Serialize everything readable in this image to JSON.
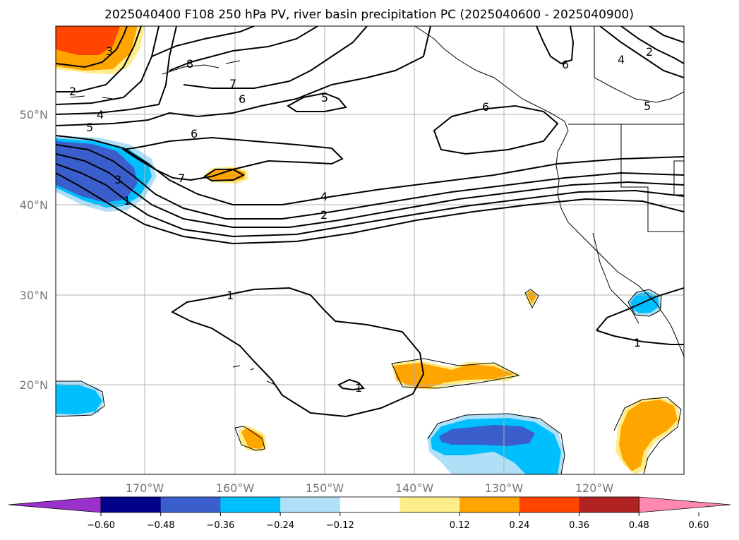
{
  "title": "2025040400 F108 250 hPa PV, river basin precipitation PC (2025040600 - 2025040900)",
  "lat_labels": [
    "50°N",
    "40°N",
    "30°N",
    "20°N"
  ],
  "lon_labels": [
    "170°W",
    "160°W",
    "150°W",
    "140°W",
    "130°W",
    "120°W"
  ],
  "colorbar": {
    "ticks": [
      "−0.60",
      "−0.48",
      "−0.36",
      "−0.24",
      "−0.12",
      "0.12",
      "0.24",
      "0.36",
      "0.48",
      "0.60"
    ],
    "colors": [
      "#9932cc",
      "#00008b",
      "#3a5fcd",
      "#00bfff",
      "#b0e0f8",
      "#ffffff",
      "#ffec8b",
      "#ffa500",
      "#ff4500",
      "#b22222",
      "#ff88b0"
    ]
  },
  "contour_labels": {
    "l3": "3",
    "l2a": "2",
    "l4a": "4",
    "l5a": "5",
    "l8": "8",
    "l7a": "7",
    "l6a": "6",
    "l5b": "5",
    "l6b": "6",
    "l6c": "6",
    "l7b": "7",
    "l3b": "3",
    "l1a": "1",
    "l4b": "4",
    "l2b": "2",
    "l6d": "6",
    "l4c": "4",
    "l2c": "2",
    "l5c": "5",
    "l1b": "1",
    "l1c": "1",
    "l1d": "1"
  }
}
